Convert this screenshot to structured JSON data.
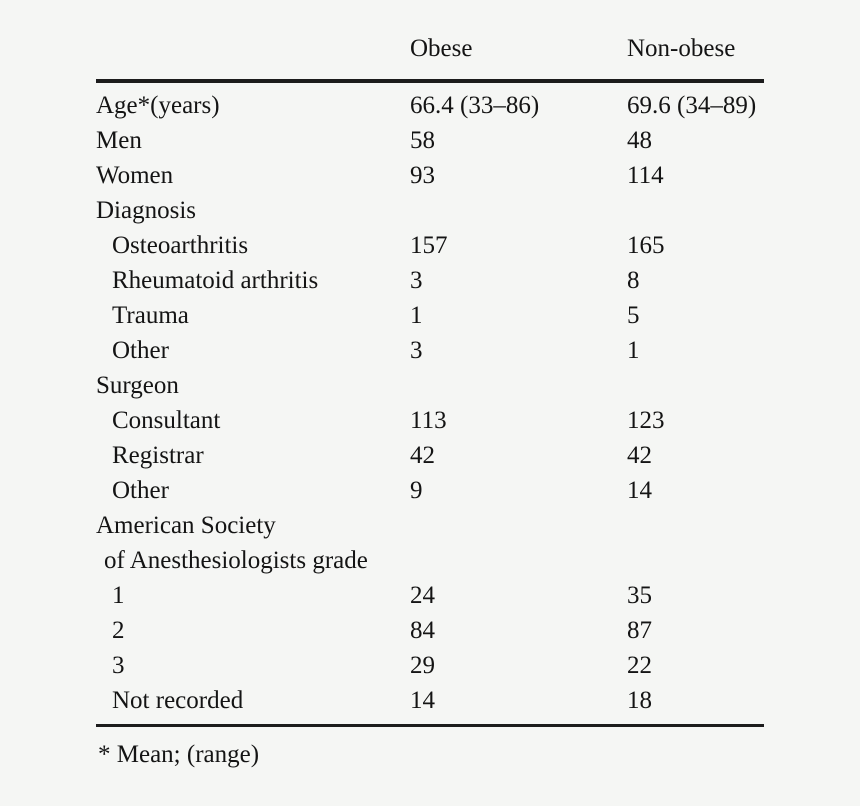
{
  "page": {
    "background": "#f5f6f4",
    "text_color": "#141414",
    "rule_color": "#1c1c1c"
  },
  "table": {
    "columns": [
      {
        "label": ""
      },
      {
        "label": "Obese"
      },
      {
        "label": "Non-obese"
      }
    ],
    "rows": [
      {
        "label": "Age*(years)",
        "indent": 0,
        "obese": "66.4 (33–86)",
        "nonobese": "69.6 (34–89)"
      },
      {
        "label": "Men",
        "indent": 0,
        "obese": "58",
        "nonobese": "48"
      },
      {
        "label": "Women",
        "indent": 0,
        "obese": "93",
        "nonobese": "114"
      },
      {
        "label": "Diagnosis",
        "indent": 0,
        "obese": "",
        "nonobese": ""
      },
      {
        "label": "Osteoarthritis",
        "indent": 1,
        "obese": "157",
        "nonobese": "165"
      },
      {
        "label": "Rheumatoid arthritis",
        "indent": 1,
        "obese": "3",
        "nonobese": "8"
      },
      {
        "label": "Trauma",
        "indent": 1,
        "obese": "1",
        "nonobese": "5"
      },
      {
        "label": "Other",
        "indent": 1,
        "obese": "3",
        "nonobese": "1"
      },
      {
        "label": "Surgeon",
        "indent": 0,
        "obese": "",
        "nonobese": ""
      },
      {
        "label": "Consultant",
        "indent": 1,
        "obese": "113",
        "nonobese": "123"
      },
      {
        "label": "Registrar",
        "indent": 1,
        "obese": "42",
        "nonobese": "42"
      },
      {
        "label": "Other",
        "indent": 1,
        "obese": "9",
        "nonobese": "14"
      },
      {
        "label": "American Society",
        "indent": 0,
        "obese": "",
        "nonobese": ""
      },
      {
        "label": "of Anesthesiologists grade",
        "indent": 0.5,
        "obese": "",
        "nonobese": ""
      },
      {
        "label": "1",
        "indent": 1,
        "obese": "24",
        "nonobese": "35"
      },
      {
        "label": "2",
        "indent": 1,
        "obese": "84",
        "nonobese": "87"
      },
      {
        "label": "3",
        "indent": 1,
        "obese": "29",
        "nonobese": "22"
      },
      {
        "label": "Not recorded",
        "indent": 1,
        "obese": "14",
        "nonobese": "18"
      }
    ],
    "footnote": "* Mean; (range)"
  }
}
